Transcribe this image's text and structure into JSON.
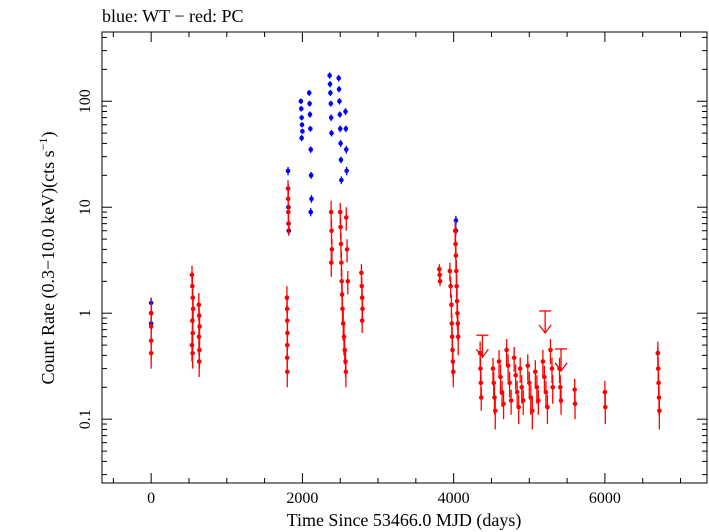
{
  "chart_data": {
    "type": "scatter",
    "title": "blue: WT − red: PC",
    "xlabel": "Time Since 53466.0 MJD (days)",
    "ylabel_main": "Count Rate (0.3−10.0 keV)(cts s",
    "ylabel_sup": "−1",
    "ylabel_end": ")",
    "x_scale": "linear",
    "y_scale": "log",
    "xlim": [
      -650,
      7350
    ],
    "ylim": [
      0.025,
      450
    ],
    "x_ticks": [
      0,
      2000,
      4000,
      6000
    ],
    "x_tick_labels": [
      "0",
      "2000",
      "4000",
      "6000"
    ],
    "y_ticks": [
      0.1,
      1,
      10,
      100
    ],
    "y_tick_labels": [
      "0.1",
      "1",
      "10",
      "100"
    ],
    "grid": false,
    "legend": "none",
    "colors": {
      "WT": "#0000ff",
      "PC": "#ff0000"
    },
    "series": [
      {
        "name": "WT",
        "points": [
          [
            0,
            1.25,
            0.15
          ],
          [
            0,
            1.0,
            0.12
          ],
          [
            0,
            0.8,
            0.1
          ],
          [
            1810,
            22,
            2
          ],
          [
            1812,
            15,
            1.5
          ],
          [
            1815,
            10,
            1
          ],
          [
            1818,
            7,
            0.7
          ],
          [
            1820,
            6,
            0.6
          ],
          [
            1980,
            100,
            6
          ],
          [
            1985,
            85,
            5
          ],
          [
            1990,
            70,
            4
          ],
          [
            1995,
            60,
            3.5
          ],
          [
            2000,
            52,
            3
          ],
          [
            1990,
            45,
            3
          ],
          [
            2090,
            120,
            8
          ],
          [
            2095,
            95,
            6
          ],
          [
            2100,
            75,
            5
          ],
          [
            2105,
            55,
            3.5
          ],
          [
            2110,
            35,
            2.5
          ],
          [
            2115,
            20,
            1.5
          ],
          [
            2120,
            12,
            1
          ],
          [
            2110,
            9,
            0.8
          ],
          [
            2360,
            175,
            12
          ],
          [
            2365,
            145,
            10
          ],
          [
            2370,
            120,
            8
          ],
          [
            2375,
            95,
            6
          ],
          [
            2380,
            70,
            5
          ],
          [
            2385,
            50,
            3.5
          ],
          [
            2480,
            165,
            12
          ],
          [
            2485,
            130,
            9
          ],
          [
            2490,
            100,
            7
          ],
          [
            2495,
            75,
            5
          ],
          [
            2500,
            55,
            4
          ],
          [
            2505,
            40,
            3
          ],
          [
            2510,
            28,
            2
          ],
          [
            2515,
            18,
            1.5
          ],
          [
            2570,
            80,
            6
          ],
          [
            2575,
            55,
            4
          ],
          [
            2580,
            35,
            3
          ],
          [
            2585,
            22,
            2
          ],
          [
            4030,
            7.5,
            0.8
          ],
          [
            4030,
            6,
            0.6
          ],
          [
            6700,
            0.42,
            0.05
          ]
        ]
      },
      {
        "name": "PC",
        "points": [
          [
            0,
            1.0,
            0.35
          ],
          [
            0,
            0.75,
            0.25
          ],
          [
            0,
            0.55,
            0.2
          ],
          [
            0,
            0.42,
            0.12
          ],
          [
            540,
            2.3,
            0.5
          ],
          [
            545,
            1.8,
            0.4
          ],
          [
            550,
            1.4,
            0.35
          ],
          [
            555,
            1.1,
            0.3
          ],
          [
            545,
            0.85,
            0.25
          ],
          [
            550,
            0.65,
            0.2
          ],
          [
            540,
            0.5,
            0.15
          ],
          [
            548,
            0.42,
            0.12
          ],
          [
            630,
            1.2,
            0.35
          ],
          [
            635,
            0.95,
            0.3
          ],
          [
            640,
            0.75,
            0.25
          ],
          [
            632,
            0.6,
            0.2
          ],
          [
            638,
            0.45,
            0.15
          ],
          [
            635,
            0.35,
            0.1
          ],
          [
            1795,
            1.4,
            0.4
          ],
          [
            1798,
            1.1,
            0.3
          ],
          [
            1800,
            0.85,
            0.25
          ],
          [
            1802,
            0.65,
            0.2
          ],
          [
            1800,
            0.5,
            0.15
          ],
          [
            1798,
            0.38,
            0.1
          ],
          [
            1800,
            0.28,
            0.08
          ],
          [
            1810,
            15,
            3
          ],
          [
            1812,
            12,
            2.5
          ],
          [
            1814,
            9,
            2
          ],
          [
            1816,
            7,
            1.5
          ],
          [
            2380,
            9,
            2.5
          ],
          [
            2385,
            6,
            1.5
          ],
          [
            2390,
            4,
            1
          ],
          [
            2382,
            3,
            0.8
          ],
          [
            2500,
            9,
            2
          ],
          [
            2505,
            6.5,
            1.5
          ],
          [
            2510,
            4.5,
            1.2
          ],
          [
            2515,
            3,
            0.8
          ],
          [
            2520,
            2,
            0.6
          ],
          [
            2525,
            1.5,
            0.4
          ],
          [
            2530,
            1.1,
            0.3
          ],
          [
            2540,
            0.8,
            0.25
          ],
          [
            2550,
            0.6,
            0.2
          ],
          [
            2560,
            0.45,
            0.12
          ],
          [
            2570,
            0.35,
            0.1
          ],
          [
            2575,
            0.28,
            0.08
          ],
          [
            2580,
            8,
            2
          ],
          [
            2590,
            4,
            1
          ],
          [
            2600,
            2,
            0.5
          ],
          [
            2780,
            2.4,
            0.5
          ],
          [
            2785,
            1.8,
            0.4
          ],
          [
            2790,
            1.4,
            0.3
          ],
          [
            2795,
            1.1,
            0.25
          ],
          [
            2790,
            0.85,
            0.2
          ],
          [
            3810,
            2.6,
            0.3
          ],
          [
            3815,
            2.3,
            0.25
          ],
          [
            3820,
            2.0,
            0.2
          ],
          [
            3950,
            2.5,
            0.5
          ],
          [
            3960,
            1.8,
            0.4
          ],
          [
            3970,
            1.2,
            0.3
          ],
          [
            3975,
            0.8,
            0.2
          ],
          [
            3980,
            0.6,
            0.15
          ],
          [
            3985,
            0.45,
            0.12
          ],
          [
            3990,
            0.35,
            0.1
          ],
          [
            3995,
            0.28,
            0.08
          ],
          [
            4020,
            6,
            1.5
          ],
          [
            4025,
            4.5,
            1.2
          ],
          [
            4030,
            3.5,
            1
          ],
          [
            4035,
            2.5,
            0.7
          ],
          [
            4040,
            1.8,
            0.5
          ],
          [
            4045,
            1.3,
            0.4
          ],
          [
            4050,
            1.0,
            0.3
          ],
          [
            4055,
            0.8,
            0.25
          ],
          [
            4060,
            0.6,
            0.2
          ],
          [
            4350,
            0.42,
            0.12
          ],
          [
            4355,
            0.3,
            0.08
          ],
          [
            4360,
            0.22,
            0.06
          ],
          [
            4365,
            0.16,
            0.04
          ],
          [
            4520,
            0.3,
            0.08
          ],
          [
            4530,
            0.22,
            0.06
          ],
          [
            4540,
            0.16,
            0.05
          ],
          [
            4550,
            0.12,
            0.04
          ],
          [
            4600,
            0.35,
            0.1
          ],
          [
            4620,
            0.25,
            0.08
          ],
          [
            4640,
            0.18,
            0.05
          ],
          [
            4660,
            0.14,
            0.04
          ],
          [
            4700,
            0.45,
            0.12
          ],
          [
            4720,
            0.32,
            0.09
          ],
          [
            4740,
            0.22,
            0.06
          ],
          [
            4760,
            0.15,
            0.04
          ],
          [
            4800,
            0.38,
            0.1
          ],
          [
            4820,
            0.26,
            0.07
          ],
          [
            4840,
            0.18,
            0.05
          ],
          [
            4860,
            0.13,
            0.04
          ],
          [
            4880,
            0.3,
            0.08
          ],
          [
            4900,
            0.2,
            0.06
          ],
          [
            4920,
            0.15,
            0.04
          ],
          [
            4980,
            0.32,
            0.09
          ],
          [
            5000,
            0.22,
            0.06
          ],
          [
            5020,
            0.16,
            0.05
          ],
          [
            5040,
            0.12,
            0.04
          ],
          [
            5080,
            0.28,
            0.08
          ],
          [
            5100,
            0.2,
            0.06
          ],
          [
            5120,
            0.15,
            0.04
          ],
          [
            5180,
            0.35,
            0.1
          ],
          [
            5200,
            0.25,
            0.07
          ],
          [
            5220,
            0.18,
            0.05
          ],
          [
            5240,
            0.13,
            0.04
          ],
          [
            5280,
            0.45,
            0.12
          ],
          [
            5300,
            0.3,
            0.08
          ],
          [
            5310,
            0.2,
            0.06
          ],
          [
            5400,
            0.3,
            0.08
          ],
          [
            5410,
            0.2,
            0.06
          ],
          [
            5420,
            0.15,
            0.04
          ],
          [
            5600,
            0.19,
            0.05
          ],
          [
            5605,
            0.14,
            0.04
          ],
          [
            6000,
            0.18,
            0.05
          ],
          [
            6005,
            0.13,
            0.04
          ],
          [
            6700,
            0.42,
            0.12
          ],
          [
            6705,
            0.3,
            0.08
          ],
          [
            6710,
            0.22,
            0.06
          ],
          [
            6715,
            0.16,
            0.05
          ],
          [
            6720,
            0.12,
            0.04
          ]
        ],
        "upper_limits": [
          [
            4380,
            0.62
          ],
          [
            5210,
            1.05
          ],
          [
            5420,
            0.46
          ]
        ]
      }
    ]
  }
}
